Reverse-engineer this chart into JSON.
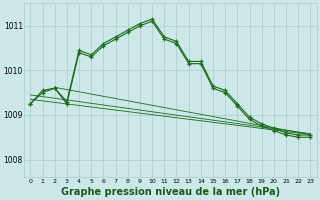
{
  "background_color": "#cce8e8",
  "grid_color": "#aacccc",
  "line_color": "#1a6b1a",
  "xlabel": "Graphe pression niveau de la mer (hPa)",
  "xlabel_fontsize": 7,
  "yticks": [
    1008,
    1009,
    1010,
    1011
  ],
  "xticks": [
    0,
    1,
    2,
    3,
    4,
    5,
    6,
    7,
    8,
    9,
    10,
    11,
    12,
    13,
    14,
    15,
    16,
    17,
    18,
    19,
    20,
    21,
    22,
    23
  ],
  "ylim": [
    1007.6,
    1011.5
  ],
  "xlim": [
    -0.5,
    23.5
  ],
  "main_x": [
    0,
    1,
    2,
    3,
    4,
    5,
    6,
    7,
    8,
    9,
    10,
    11,
    12,
    13,
    14,
    15,
    16,
    17,
    18,
    19,
    20,
    21,
    22,
    23
  ],
  "main_y": [
    1009.25,
    1009.55,
    1009.6,
    1009.3,
    1010.45,
    1010.35,
    1010.6,
    1010.75,
    1010.9,
    1011.05,
    1011.15,
    1010.75,
    1010.65,
    1010.2,
    1010.2,
    1009.65,
    1009.55,
    1009.25,
    1008.95,
    1008.8,
    1008.7,
    1008.6,
    1008.55,
    1008.55
  ],
  "line2_x": [
    0,
    1,
    2,
    3,
    4,
    5,
    6,
    7,
    8,
    9,
    10,
    11,
    12,
    13,
    14,
    15,
    16,
    17,
    18,
    19,
    20,
    21,
    22,
    23
  ],
  "line2_y": [
    1009.25,
    1009.5,
    1009.6,
    1009.25,
    1010.4,
    1010.3,
    1010.55,
    1010.7,
    1010.85,
    1011.0,
    1011.1,
    1010.7,
    1010.6,
    1010.15,
    1010.15,
    1009.6,
    1009.5,
    1009.2,
    1008.9,
    1008.75,
    1008.65,
    1008.55,
    1008.5,
    1008.5
  ],
  "trend1_x": [
    0,
    23
  ],
  "trend1_y": [
    1009.45,
    1008.58
  ],
  "trend2_x": [
    0,
    23
  ],
  "trend2_y": [
    1009.35,
    1008.56
  ],
  "trend3_x": [
    2,
    23
  ],
  "trend3_y": [
    1009.62,
    1008.56
  ]
}
